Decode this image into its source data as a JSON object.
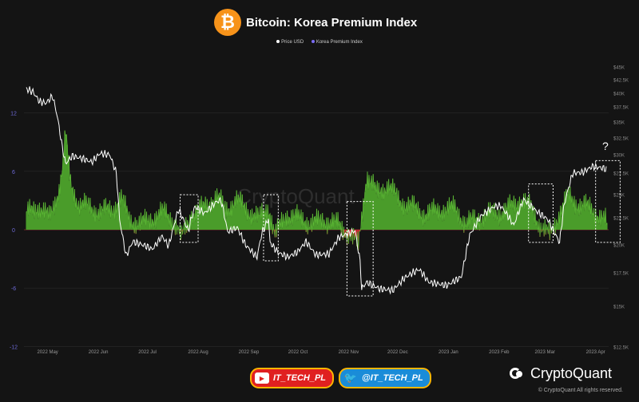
{
  "header": {
    "logo_glyph": "₿",
    "title": "Bitcoin: Korea Premium Index"
  },
  "legend": [
    {
      "label": "Price USD",
      "color": "#ffffff"
    },
    {
      "label": "Korea Premium Index",
      "color": "#7b6cf6"
    }
  ],
  "chart_data": {
    "type": "line",
    "title": "Bitcoin: Korea Premium Index",
    "watermark": "CryptoQuant",
    "x_tick_labels": [
      "2022 May",
      "2022 Jun",
      "2022 Jul",
      "2022 Aug",
      "2022 Sep",
      "2022 Oct",
      "2022 Nov",
      "2022 Dec",
      "2023 Jan",
      "2023 Feb",
      "2023 Mar",
      "2023 Apr"
    ],
    "left_axis": {
      "ticks": [
        "12",
        "6",
        "0",
        "-6",
        "-12"
      ],
      "values": [
        12,
        6,
        0,
        -6,
        -12
      ],
      "ylim": [
        -12,
        16
      ]
    },
    "right_axis": {
      "ticks": [
        "$45K",
        "$42.5K",
        "$40K",
        "$37.5K",
        "$35K",
        "$32.5K",
        "$30K",
        "$27.5K",
        "$25K",
        "$22.5K",
        "$20K",
        "$17.5K",
        "$15K",
        "$12.5K"
      ]
    },
    "series": [
      {
        "name": "Price USD",
        "axis": "right",
        "color": "#ffffff",
        "points": [
          [
            "2022-04-18",
            40800
          ],
          [
            "2022-04-22",
            40300
          ],
          [
            "2022-04-26",
            38500
          ],
          [
            "2022-04-30",
            38200
          ],
          [
            "2022-05-04",
            39500
          ],
          [
            "2022-05-07",
            35800
          ],
          [
            "2022-05-10",
            31000
          ],
          [
            "2022-05-12",
            28800
          ],
          [
            "2022-05-16",
            29800
          ],
          [
            "2022-05-22",
            29500
          ],
          [
            "2022-05-28",
            29000
          ],
          [
            "2022-06-02",
            30200
          ],
          [
            "2022-06-08",
            30000
          ],
          [
            "2022-06-12",
            27500
          ],
          [
            "2022-06-14",
            22300
          ],
          [
            "2022-06-18",
            19000
          ],
          [
            "2022-06-22",
            20300
          ],
          [
            "2022-06-30",
            19900
          ],
          [
            "2022-07-04",
            19600
          ],
          [
            "2022-07-10",
            20800
          ],
          [
            "2022-07-14",
            19900
          ],
          [
            "2022-07-20",
            23400
          ],
          [
            "2022-07-26",
            21300
          ],
          [
            "2022-07-30",
            23700
          ],
          [
            "2022-08-05",
            23000
          ],
          [
            "2022-08-12",
            24200
          ],
          [
            "2022-08-15",
            24400
          ],
          [
            "2022-08-19",
            21200
          ],
          [
            "2022-08-25",
            21600
          ],
          [
            "2022-08-30",
            20000
          ],
          [
            "2022-09-06",
            18900
          ],
          [
            "2022-09-09",
            21100
          ],
          [
            "2022-09-13",
            22400
          ],
          [
            "2022-09-14",
            20200
          ],
          [
            "2022-09-19",
            19300
          ],
          [
            "2022-09-25",
            18900
          ],
          [
            "2022-10-01",
            19400
          ],
          [
            "2022-10-06",
            20300
          ],
          [
            "2022-10-12",
            19100
          ],
          [
            "2022-10-20",
            19200
          ],
          [
            "2022-10-26",
            20700
          ],
          [
            "2022-11-05",
            21300
          ],
          [
            "2022-11-08",
            18500
          ],
          [
            "2022-11-09",
            16300
          ],
          [
            "2022-11-12",
            16800
          ],
          [
            "2022-11-20",
            16300
          ],
          [
            "2022-11-28",
            16200
          ],
          [
            "2022-12-05",
            17100
          ],
          [
            "2022-12-14",
            17800
          ],
          [
            "2022-12-20",
            16800
          ],
          [
            "2022-12-31",
            16550
          ],
          [
            "2023-01-09",
            17200
          ],
          [
            "2023-01-14",
            20900
          ],
          [
            "2023-01-21",
            22700
          ],
          [
            "2023-01-29",
            23700
          ],
          [
            "2023-02-02",
            23800
          ],
          [
            "2023-02-10",
            21800
          ],
          [
            "2023-02-16",
            24500
          ],
          [
            "2023-02-24",
            23200
          ],
          [
            "2023-03-03",
            22300
          ],
          [
            "2023-03-10",
            20200
          ],
          [
            "2023-03-13",
            24100
          ],
          [
            "2023-03-18",
            27500
          ],
          [
            "2023-03-24",
            27600
          ],
          [
            "2023-03-30",
            28400
          ],
          [
            "2023-04-05",
            28200
          ],
          [
            "2023-04-08",
            28000
          ]
        ]
      },
      {
        "name": "Korea Premium Index",
        "axis": "left",
        "color": "#4a9c2a",
        "negative_color": "#c0262d",
        "points": [
          [
            "2022-04-18",
            1.6
          ],
          [
            "2022-04-25",
            2.5
          ],
          [
            "2022-05-02",
            1.2
          ],
          [
            "2022-05-08",
            4.2
          ],
          [
            "2022-05-10",
            6.2
          ],
          [
            "2022-05-12",
            9.8
          ],
          [
            "2022-05-15",
            4.8
          ],
          [
            "2022-05-20",
            2.6
          ],
          [
            "2022-05-27",
            2.3
          ],
          [
            "2022-06-03",
            1.8
          ],
          [
            "2022-06-10",
            2.2
          ],
          [
            "2022-06-15",
            3.2
          ],
          [
            "2022-06-20",
            1.1
          ],
          [
            "2022-06-27",
            0.6
          ],
          [
            "2022-07-04",
            1.2
          ],
          [
            "2022-07-11",
            1.8
          ],
          [
            "2022-07-17",
            1.0
          ],
          [
            "2022-07-22",
            -0.8
          ],
          [
            "2022-07-28",
            1.6
          ],
          [
            "2022-08-04",
            2.2
          ],
          [
            "2022-08-12",
            3.4
          ],
          [
            "2022-08-18",
            2.1
          ],
          [
            "2022-08-24",
            3.0
          ],
          [
            "2022-08-31",
            2.1
          ],
          [
            "2022-09-07",
            1.1
          ],
          [
            "2022-09-13",
            2.4
          ],
          [
            "2022-09-17",
            -0.6
          ],
          [
            "2022-09-24",
            1.6
          ],
          [
            "2022-10-01",
            1.2
          ],
          [
            "2022-10-10",
            0.7
          ],
          [
            "2022-10-18",
            1.0
          ],
          [
            "2022-10-26",
            0.5
          ],
          [
            "2022-11-02",
            -0.6
          ],
          [
            "2022-11-07",
            -1.6
          ],
          [
            "2022-11-10",
            2.8
          ],
          [
            "2022-11-12",
            5.6
          ],
          [
            "2022-11-18",
            3.8
          ],
          [
            "2022-11-25",
            4.6
          ],
          [
            "2022-12-02",
            3.0
          ],
          [
            "2022-12-10",
            2.3
          ],
          [
            "2022-12-18",
            1.6
          ],
          [
            "2022-12-28",
            2.1
          ],
          [
            "2023-01-05",
            2.2
          ],
          [
            "2023-01-12",
            0.6
          ],
          [
            "2023-01-19",
            1.2
          ],
          [
            "2023-01-26",
            1.6
          ],
          [
            "2023-02-02",
            1.8
          ],
          [
            "2023-02-09",
            2.4
          ],
          [
            "2023-02-15",
            3.2
          ],
          [
            "2023-02-21",
            2.0
          ],
          [
            "2023-02-27",
            0.3
          ],
          [
            "2023-03-04",
            -0.6
          ],
          [
            "2023-03-10",
            1.8
          ],
          [
            "2023-03-15",
            3.4
          ],
          [
            "2023-03-22",
            2.6
          ],
          [
            "2023-03-29",
            2.2
          ],
          [
            "2023-04-05",
            1.2
          ],
          [
            "2023-04-08",
            0.7
          ]
        ]
      }
    ],
    "annotations": [
      {
        "type": "dashed-box",
        "from": "2022-07-21",
        "to": "2022-08-01",
        "ylim": [
          -1.3,
          3.6
        ]
      },
      {
        "type": "dashed-box",
        "from": "2022-09-10",
        "to": "2022-09-19",
        "ylim": [
          -3.2,
          3.6
        ]
      },
      {
        "type": "dashed-box",
        "from": "2022-10-31",
        "to": "2022-11-16",
        "ylim": [
          -6.8,
          2.9
        ]
      },
      {
        "type": "dashed-box",
        "from": "2023-02-19",
        "to": "2023-03-06",
        "ylim": [
          -1.3,
          4.7
        ]
      },
      {
        "type": "dashed-box",
        "from": "2023-04-01",
        "to": "2023-04-16",
        "ylim": [
          -1.3,
          7.1
        ]
      },
      {
        "type": "text",
        "text": "?",
        "at": "2023-04-07",
        "y": 8.2
      }
    ]
  },
  "footer": {
    "youtube_label": "IT_TECH_PL",
    "twitter_label": "@IT_TECH_PL",
    "brand": "CryptoQuant",
    "copyright": "© CryptoQuant All rights reserved."
  }
}
